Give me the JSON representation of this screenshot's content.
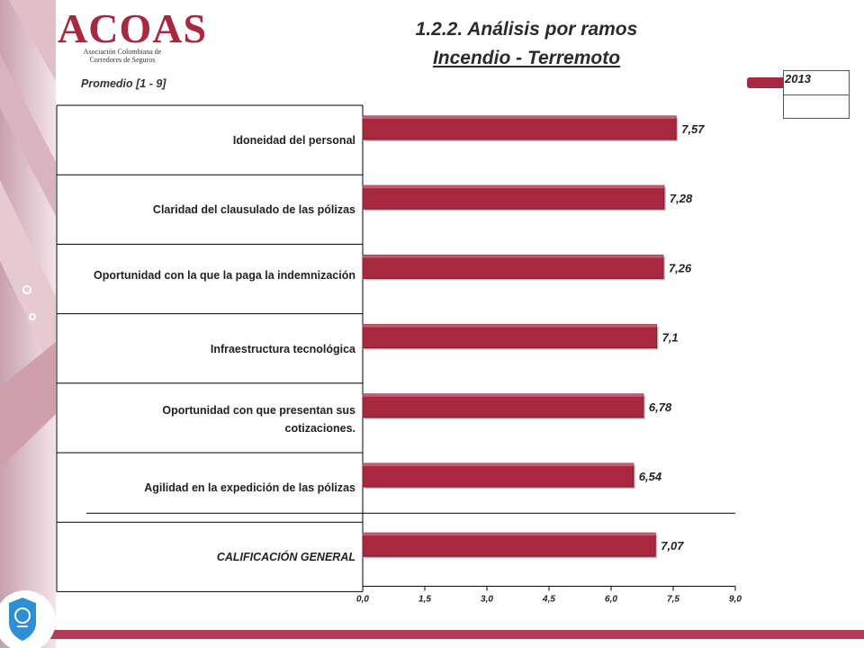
{
  "header": {
    "logo_text": "ACOAS",
    "logo_subtitle": "Asociación Colombiana de Corredores de Seguros",
    "title": "1.2.2. Análisis por ramos",
    "subtitle": "Incendio - Terremoto"
  },
  "metric_label": "Promedio  [1 - 9]",
  "legend": {
    "label": "2013",
    "color": "#a8283f"
  },
  "chart_data": {
    "type": "bar",
    "orientation": "horizontal",
    "categories": [
      "Idoneidad del personal",
      "Claridad del clausulado de las pólizas",
      "Oportunidad con la que la paga la indemnización",
      "Infraestructura tecnológica",
      "Oportunidad con que presentan sus cotizaciones.",
      "Agilidad en la expedición de las pólizas",
      "CALIFICACIÓN GENERAL"
    ],
    "series": [
      {
        "name": "2013",
        "values": [
          7.57,
          7.28,
          7.26,
          7.1,
          6.78,
          6.54,
          7.07
        ]
      }
    ],
    "value_labels": [
      "7,57",
      "7,28",
      "7,26",
      "7,1",
      "6,78",
      "6,54",
      "7,07"
    ],
    "xlim": [
      0,
      9
    ],
    "x_ticks": [
      "0,0",
      "1,5",
      "3,0",
      "4,5",
      "6,0",
      "7,5",
      "9,0"
    ],
    "legend_position": "top-right",
    "grid": false
  },
  "colors": {
    "bar": "#a8283f",
    "accent": "#b6405a"
  },
  "icons": {
    "bottom_left": "shield-icon"
  }
}
